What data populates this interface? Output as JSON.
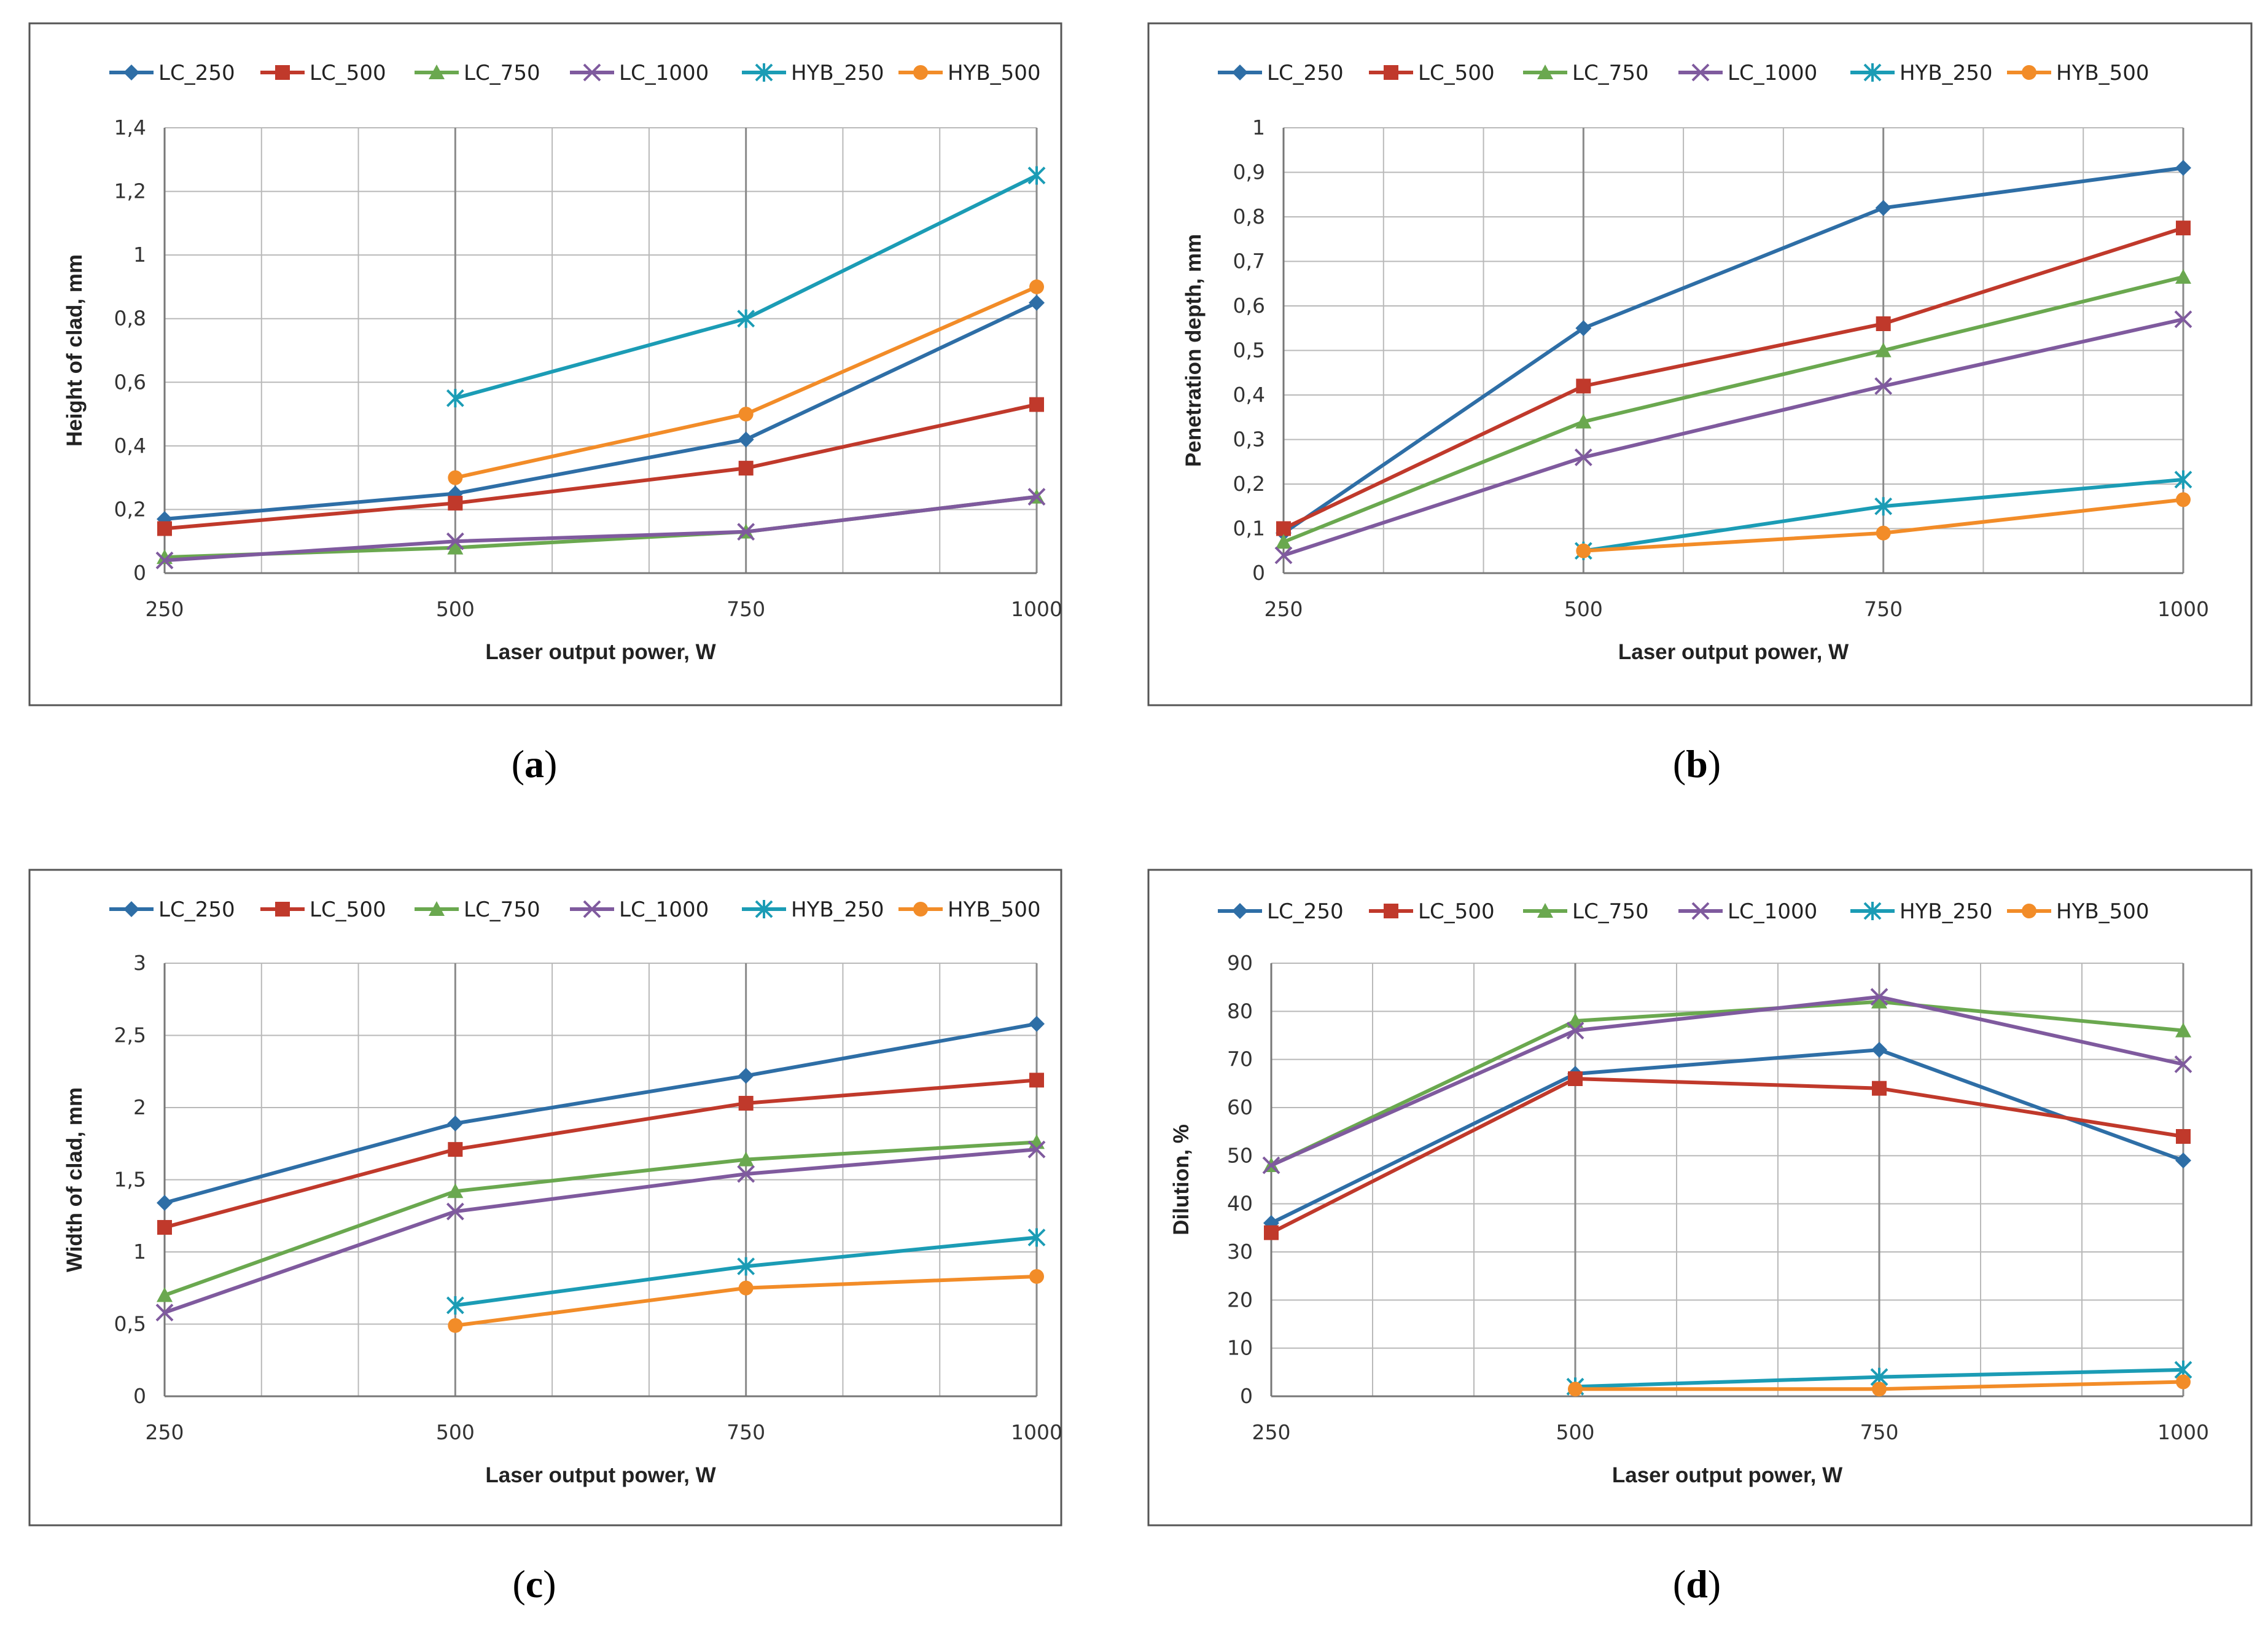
{
  "figure": {
    "panel_labels": [
      "a",
      "b",
      "c",
      "d"
    ]
  },
  "series_style": [
    {
      "name": "LC_250",
      "color": "#2e6ea6",
      "marker": "diamond"
    },
    {
      "name": "LC_500",
      "color": "#c0392b",
      "marker": "square"
    },
    {
      "name": "LC_750",
      "color": "#6aa84f",
      "marker": "triangle"
    },
    {
      "name": "LC_1000",
      "color": "#7f5a9e",
      "marker": "x"
    },
    {
      "name": "HYB_250",
      "color": "#1b9cb5",
      "marker": "asterisk"
    },
    {
      "name": "HYB_500",
      "color": "#f28c28",
      "marker": "circle"
    }
  ],
  "chart_data": [
    {
      "type": "line",
      "panel": "a",
      "title": "",
      "xlabel": "Laser output power, W",
      "ylabel": "Height of clad, mm",
      "categories": [
        "250",
        "500",
        "750",
        "1000"
      ],
      "yticks": [
        "0",
        "0,2",
        "0,4",
        "0,6",
        "0,8",
        "1",
        "1,2",
        "1,4"
      ],
      "ylim": [
        0,
        1.4
      ],
      "legend": "top",
      "grid": true,
      "series": [
        {
          "name": "LC_250",
          "values": [
            0.17,
            0.25,
            0.42,
            0.85
          ]
        },
        {
          "name": "LC_500",
          "values": [
            0.14,
            0.22,
            0.33,
            0.53
          ]
        },
        {
          "name": "LC_750",
          "values": [
            0.05,
            0.08,
            0.13,
            0.24
          ]
        },
        {
          "name": "LC_1000",
          "values": [
            0.04,
            0.1,
            0.13,
            0.24
          ]
        },
        {
          "name": "HYB_250",
          "values": [
            null,
            0.55,
            0.8,
            1.25
          ]
        },
        {
          "name": "HYB_500",
          "values": [
            null,
            0.3,
            0.5,
            0.9
          ]
        }
      ]
    },
    {
      "type": "line",
      "panel": "b",
      "title": "",
      "xlabel": "Laser output power, W",
      "ylabel": "Penetration depth, mm",
      "categories": [
        "250",
        "500",
        "750",
        "1000"
      ],
      "yticks": [
        "0",
        "0,1",
        "0,2",
        "0,3",
        "0,4",
        "0,5",
        "0,6",
        "0,7",
        "0,8",
        "0,9",
        "1"
      ],
      "ylim": [
        0,
        1.0
      ],
      "legend": "top",
      "grid": true,
      "series": [
        {
          "name": "LC_250",
          "values": [
            0.09,
            0.55,
            0.82,
            0.91
          ]
        },
        {
          "name": "LC_500",
          "values": [
            0.1,
            0.42,
            0.56,
            0.775
          ]
        },
        {
          "name": "LC_750",
          "values": [
            0.07,
            0.34,
            0.5,
            0.665
          ]
        },
        {
          "name": "LC_1000",
          "values": [
            0.04,
            0.26,
            0.42,
            0.57
          ]
        },
        {
          "name": "HYB_250",
          "values": [
            null,
            0.05,
            0.15,
            0.21
          ]
        },
        {
          "name": "HYB_500",
          "values": [
            null,
            0.05,
            0.09,
            0.165
          ]
        }
      ]
    },
    {
      "type": "line",
      "panel": "c",
      "title": "",
      "xlabel": "Laser output power, W",
      "ylabel": "Width of clad, mm",
      "categories": [
        "250",
        "500",
        "750",
        "1000"
      ],
      "yticks": [
        "0",
        "0,5",
        "1",
        "1,5",
        "2",
        "2,5",
        "3"
      ],
      "ylim": [
        0,
        3
      ],
      "legend": "top",
      "grid": true,
      "series": [
        {
          "name": "LC_250",
          "values": [
            1.34,
            1.89,
            2.22,
            2.58
          ]
        },
        {
          "name": "LC_500",
          "values": [
            1.17,
            1.71,
            2.03,
            2.19
          ]
        },
        {
          "name": "LC_750",
          "values": [
            0.7,
            1.42,
            1.64,
            1.76
          ]
        },
        {
          "name": "LC_1000",
          "values": [
            0.58,
            1.28,
            1.54,
            1.71
          ]
        },
        {
          "name": "HYB_250",
          "values": [
            null,
            0.63,
            0.9,
            1.1
          ]
        },
        {
          "name": "HYB_500",
          "values": [
            null,
            0.49,
            0.75,
            0.83
          ]
        }
      ]
    },
    {
      "type": "line",
      "panel": "d",
      "title": "",
      "xlabel": "Laser output power, W",
      "ylabel": "Dilution, %",
      "categories": [
        "250",
        "500",
        "750",
        "1000"
      ],
      "yticks": [
        "0",
        "10",
        "20",
        "30",
        "40",
        "50",
        "60",
        "70",
        "80",
        "90"
      ],
      "ylim": [
        0,
        90
      ],
      "legend": "top",
      "grid": true,
      "series": [
        {
          "name": "LC_250",
          "values": [
            36,
            67,
            72,
            49
          ]
        },
        {
          "name": "LC_500",
          "values": [
            34,
            66,
            64,
            54
          ]
        },
        {
          "name": "LC_750",
          "values": [
            48,
            78,
            82,
            76
          ]
        },
        {
          "name": "LC_1000",
          "values": [
            48,
            76,
            83,
            69
          ]
        },
        {
          "name": "HYB_250",
          "values": [
            null,
            2,
            4,
            5.5
          ]
        },
        {
          "name": "HYB_500",
          "values": [
            null,
            1.5,
            1.5,
            3
          ]
        }
      ]
    }
  ]
}
